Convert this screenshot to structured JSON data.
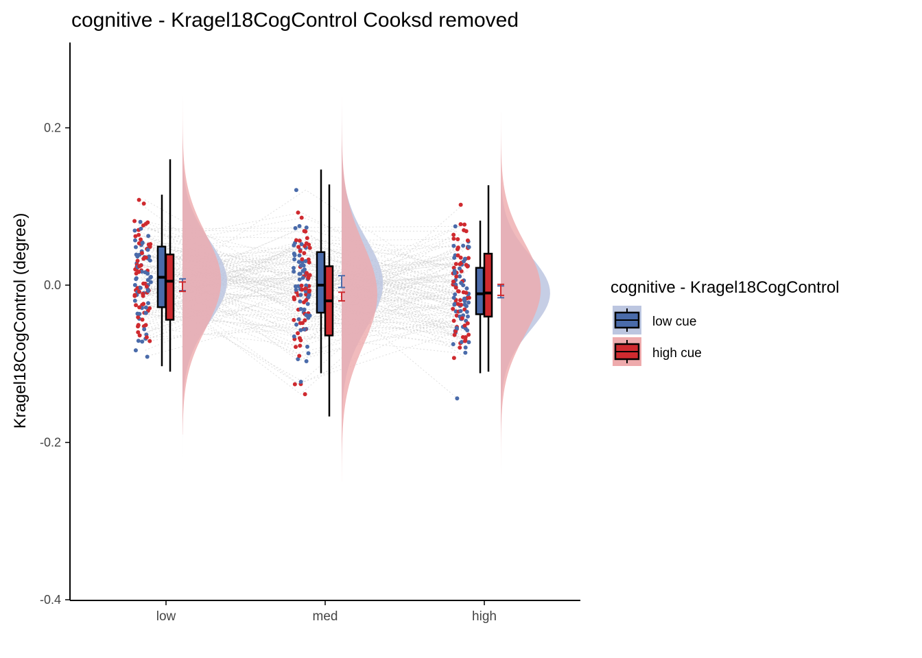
{
  "chart_data": {
    "type": "raincloud",
    "title": "cognitive  -  Kragel18CogControl  Cooksd removed",
    "ylabel": "Kragel18CogControl  (degree)",
    "xlabel": "",
    "categories": [
      "low",
      "med",
      "high"
    ],
    "y_ticks": [
      "0.2",
      "0.0",
      "-0.2",
      "-0.4"
    ],
    "ylim": [
      -0.4,
      0.3
    ],
    "grid": false,
    "legend": {
      "title": "cognitive  -  Kragel18CogControl",
      "position": "right",
      "items": [
        "low cue",
        "high cue"
      ]
    },
    "colors": {
      "low_cue": "#4a6baa",
      "high_cue": "#cf2a2f",
      "low_cue_fill": "#bcc6e0",
      "high_cue_fill": "#eeaaac"
    },
    "series": [
      {
        "name": "low cue",
        "boxplot": [
          {
            "category": "low",
            "whisker_low": -0.103,
            "q1": -0.028,
            "median": 0.01,
            "q3": 0.049,
            "whisker_high": 0.115
          },
          {
            "category": "med",
            "whisker_low": -0.112,
            "q1": -0.035,
            "median": 0.0,
            "q3": 0.042,
            "whisker_high": 0.147
          },
          {
            "category": "high",
            "whisker_low": -0.112,
            "q1": -0.037,
            "median": -0.011,
            "q3": 0.022,
            "whisker_high": 0.082
          }
        ],
        "mean_se": [
          {
            "category": "low",
            "mean": 0.001,
            "lo": -0.007,
            "hi": 0.008
          },
          {
            "category": "med",
            "mean": 0.004,
            "lo": -0.003,
            "hi": 0.012
          },
          {
            "category": "high",
            "mean": -0.008,
            "lo": -0.016,
            "hi": -0.001
          }
        ],
        "density": [
          {
            "category": "low",
            "mean": 0.005,
            "sd": 0.052,
            "min": -0.36,
            "max": 0.19
          },
          {
            "category": "med",
            "mean": 0.002,
            "sd": 0.056,
            "min": -0.22,
            "max": 0.27
          },
          {
            "category": "high",
            "mean": -0.01,
            "sd": 0.047,
            "min": -0.18,
            "max": 0.23
          }
        ]
      },
      {
        "name": "high cue",
        "boxplot": [
          {
            "category": "low",
            "whisker_low": -0.11,
            "q1": -0.044,
            "median": 0.005,
            "q3": 0.039,
            "whisker_high": 0.16
          },
          {
            "category": "med",
            "whisker_low": -0.167,
            "q1": -0.064,
            "median": -0.02,
            "q3": 0.024,
            "whisker_high": 0.128
          },
          {
            "category": "high",
            "whisker_low": -0.11,
            "q1": -0.04,
            "median": -0.01,
            "q3": 0.04,
            "whisker_high": 0.127
          }
        ],
        "mean_se": [
          {
            "category": "low",
            "mean": -0.002,
            "lo": -0.008,
            "hi": 0.004
          },
          {
            "category": "med",
            "mean": -0.015,
            "lo": -0.02,
            "hi": -0.009
          },
          {
            "category": "high",
            "mean": -0.006,
            "lo": -0.013,
            "hi": 0.001
          }
        ],
        "density": [
          {
            "category": "low",
            "mean": 0.005,
            "sd": 0.06,
            "min": -0.19,
            "max": 0.24
          },
          {
            "category": "med",
            "mean": -0.012,
            "sd": 0.065,
            "min": -0.25,
            "max": 0.24
          },
          {
            "category": "high",
            "mean": -0.005,
            "sd": 0.058,
            "min": -0.24,
            "max": 0.22
          }
        ]
      }
    ]
  }
}
